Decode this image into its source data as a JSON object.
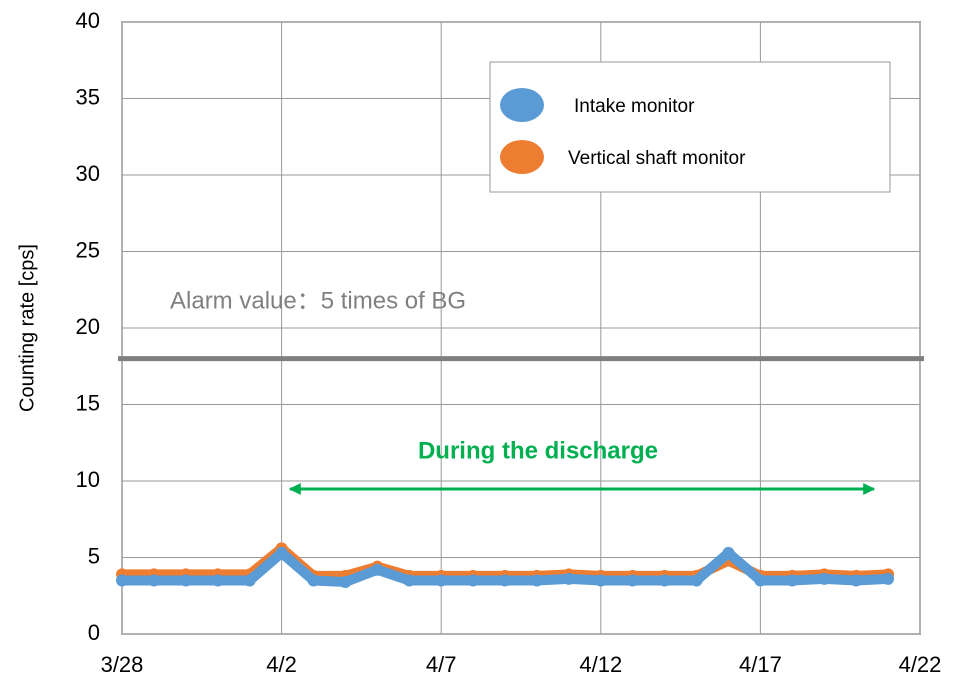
{
  "chart_data": {
    "type": "line",
    "y_label": "Counting rate [cps]",
    "x": [
      "3/28",
      "3/29",
      "3/30",
      "3/31",
      "4/1",
      "4/2",
      "4/3",
      "4/4",
      "4/5",
      "4/6",
      "4/7",
      "4/8",
      "4/9",
      "4/10",
      "4/11",
      "4/12",
      "4/13",
      "4/14",
      "4/15",
      "4/16",
      "4/17",
      "4/18",
      "4/19",
      "4/20",
      "4/21"
    ],
    "series": [
      {
        "name": "Intake monitor",
        "color": "#5b9bd5",
        "values": [
          3.5,
          3.5,
          3.5,
          3.5,
          3.5,
          5.3,
          3.5,
          3.4,
          4.2,
          3.5,
          3.5,
          3.5,
          3.5,
          3.5,
          3.6,
          3.5,
          3.5,
          3.5,
          3.5,
          5.3,
          3.5,
          3.5,
          3.6,
          3.5,
          3.6
        ]
      },
      {
        "name": "Vertical shaft monitor",
        "color": "#ed7d31",
        "values": [
          3.9,
          3.9,
          3.9,
          3.9,
          3.9,
          5.6,
          3.8,
          3.8,
          4.4,
          3.8,
          3.8,
          3.8,
          3.8,
          3.8,
          3.9,
          3.8,
          3.8,
          3.8,
          3.8,
          4.8,
          3.8,
          3.8,
          3.9,
          3.8,
          3.9
        ]
      }
    ],
    "xlim": [
      "3/28",
      "4/22"
    ],
    "xticks": [
      "3/28",
      "4/2",
      "4/7",
      "4/12",
      "4/17",
      "4/22"
    ],
    "ylim": [
      0,
      40
    ],
    "yticks": [
      0,
      5,
      10,
      15,
      20,
      25,
      30,
      35,
      40
    ],
    "grid": true,
    "alarm_line": 18,
    "alarm_label": "Alarm value：5 times of BG",
    "discharge_label": "During the discharge"
  }
}
